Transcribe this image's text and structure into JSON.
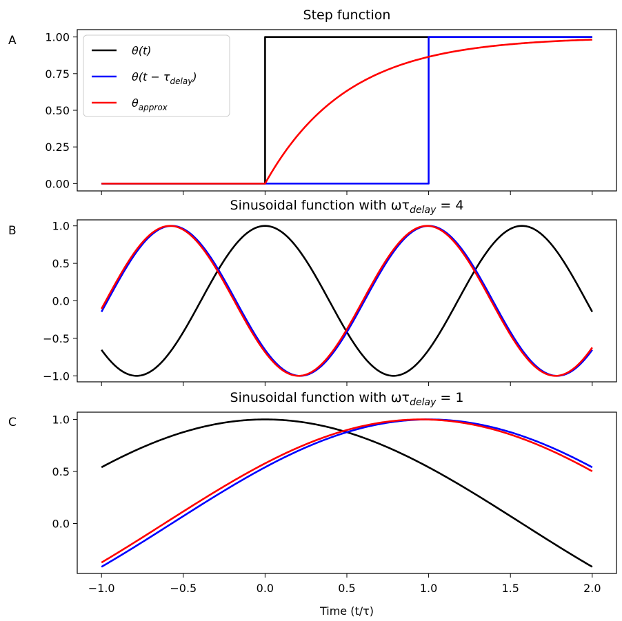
{
  "xlabel": "Time (t/τ)",
  "x_range": [
    -1.0,
    2.0
  ],
  "x_ticks": [
    "−1.0",
    "−0.5",
    "0.0",
    "0.5",
    "1.0",
    "1.5",
    "2.0"
  ],
  "colors": {
    "theta": "#000000",
    "theta_delay": "#0000ff",
    "theta_approx": "#ff0000"
  },
  "chart_data": [
    {
      "letter": "A",
      "type": "line",
      "title": "Step function",
      "xlabel": "",
      "ylabel": "",
      "xlim": [
        -1.0,
        2.0
      ],
      "ylim": [
        -0.05,
        1.05
      ],
      "y_ticks": [
        {
          "value": 0.0,
          "label": "0.00"
        },
        {
          "value": 0.25,
          "label": "0.25"
        },
        {
          "value": 0.5,
          "label": "0.50"
        },
        {
          "value": 0.75,
          "label": "0.75"
        },
        {
          "value": 1.0,
          "label": "1.00"
        }
      ],
      "legend": {
        "placement": "upper-left"
      },
      "series": [
        {
          "name": "θ(t)",
          "name_main": "θ(t)",
          "color": "#000000",
          "points": [
            [
              -1.0,
              0
            ],
            [
              0.0,
              0
            ],
            [
              0.0,
              1
            ],
            [
              2.0,
              1
            ]
          ]
        },
        {
          "name": "θ(t − τdelay)",
          "name_main": "θ(t − τ",
          "name_sub": "delay",
          "name_tail": ")",
          "color": "#0000ff",
          "points": [
            [
              -1.0,
              0
            ],
            [
              1.0,
              0
            ],
            [
              1.0,
              1
            ],
            [
              2.0,
              1
            ]
          ]
        },
        {
          "name": "θapprox",
          "name_main": "θ",
          "name_sub": "approx",
          "name_tail": "",
          "color": "#ff0000",
          "points": [
            [
              -1.0,
              0
            ],
            [
              0.0,
              0
            ],
            [
              0.25,
              0.393
            ],
            [
              0.5,
              0.632
            ],
            [
              0.75,
              0.777
            ],
            [
              1.0,
              0.865
            ],
            [
              1.25,
              0.918
            ],
            [
              1.5,
              0.95
            ],
            [
              1.75,
              0.97
            ],
            [
              2.0,
              0.982
            ]
          ]
        }
      ]
    },
    {
      "letter": "B",
      "type": "line",
      "title": "Sinusoidal function with ωτdelay = 4",
      "title_main": "Sinusoidal function with ωτ",
      "title_sub": "delay",
      "title_tail": " = 4",
      "xlabel": "",
      "ylabel": "",
      "xlim": [
        -1.0,
        2.0
      ],
      "ylim": [
        -1.08,
        1.08
      ],
      "y_ticks": [
        {
          "value": -1.0,
          "label": "−1.0"
        },
        {
          "value": -0.5,
          "label": "−0.5"
        },
        {
          "value": 0.0,
          "label": "0.0"
        },
        {
          "value": 0.5,
          "label": "0.5"
        },
        {
          "value": 1.0,
          "label": "1.0"
        }
      ],
      "series": [
        {
          "color": "#000000",
          "function": "cos",
          "omega": 4,
          "shift": 0.0
        },
        {
          "color": "#0000ff",
          "function": "cos",
          "omega": 4,
          "shift": 1.0
        },
        {
          "color": "#ff0000",
          "function": "cos",
          "omega": 4,
          "shift": 0.99
        }
      ]
    },
    {
      "letter": "C",
      "type": "line",
      "title": "Sinusoidal function with ωτdelay = 1",
      "title_main": "Sinusoidal function with ωτ",
      "title_sub": "delay",
      "title_tail": " = 1",
      "xlabel": "Time (t/τ)",
      "ylabel": "",
      "xlim": [
        -1.0,
        2.0
      ],
      "ylim": [
        -0.48,
        1.07
      ],
      "y_ticks": [
        {
          "value": 0.0,
          "label": "0.0"
        },
        {
          "value": 0.5,
          "label": "0.5"
        },
        {
          "value": 1.0,
          "label": "1.0"
        }
      ],
      "series": [
        {
          "color": "#000000",
          "function": "cos",
          "omega": 1,
          "shift": 0.0
        },
        {
          "color": "#0000ff",
          "function": "cos",
          "omega": 1,
          "shift": 1.0
        },
        {
          "color": "#ff0000",
          "function": "cos",
          "omega": 1,
          "shift": 0.955
        }
      ]
    }
  ]
}
